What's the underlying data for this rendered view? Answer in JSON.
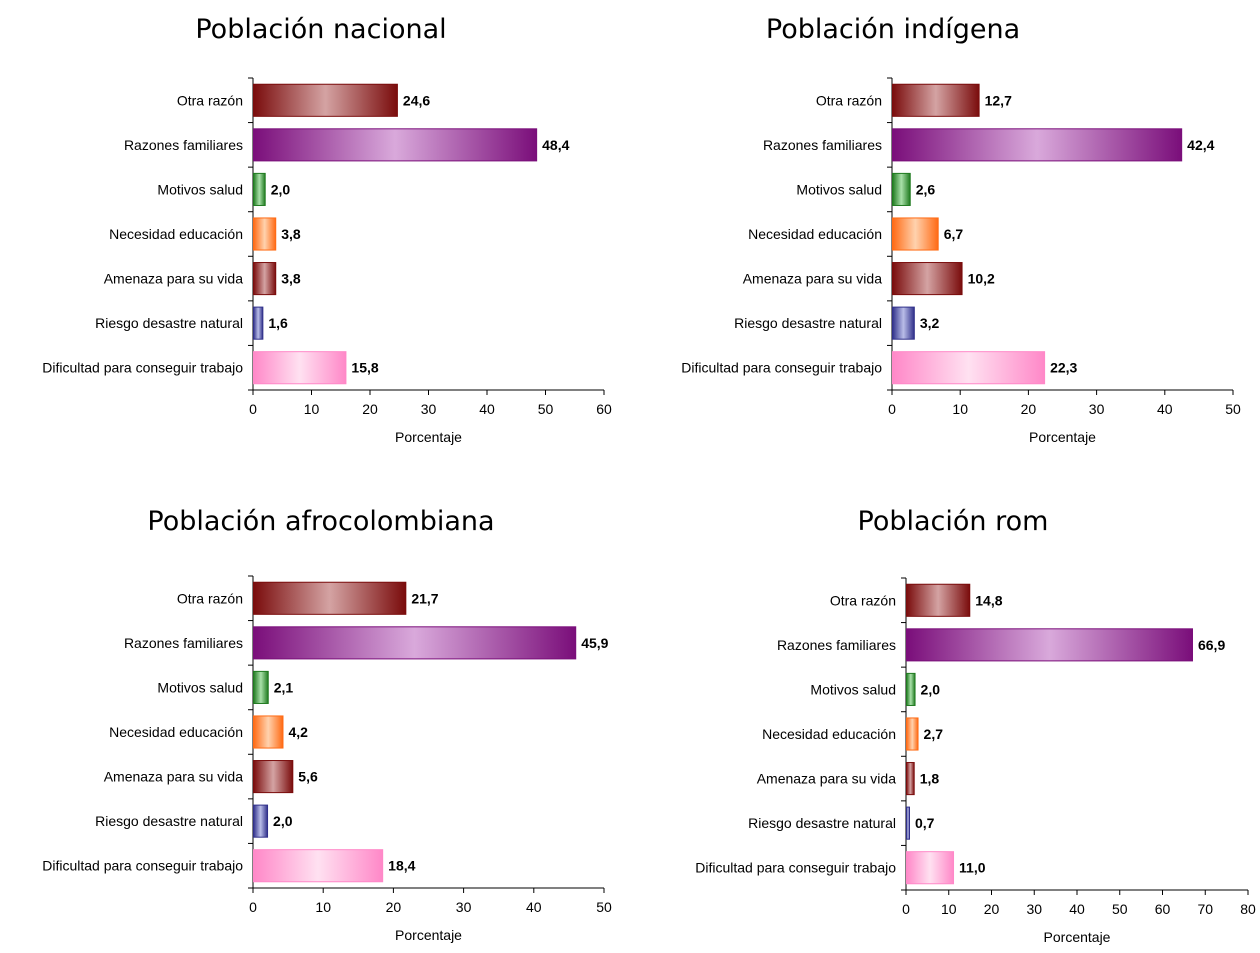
{
  "palette": {
    "maroon": [
      "#7a0c0c",
      "#d4a3a3"
    ],
    "purple": [
      "#7a0e7a",
      "#d9a9db"
    ],
    "green": [
      "#1f7a1f",
      "#a9e0a9"
    ],
    "orange": [
      "#ff6a14",
      "#ffd2ae"
    ],
    "navy": [
      "#30308a",
      "#b9bde8"
    ],
    "pink": [
      "#ff88c8",
      "#ffe1f1"
    ]
  },
  "chart_data": [
    {
      "type": "bar",
      "title": "Población nacional",
      "xlabel": "Porcentaje",
      "ylabel": "",
      "categories": [
        "Otra razón",
        "Razones familiares",
        "Motivos salud",
        "Necesidad educación",
        "Amenaza para su vida",
        "Riesgo desastre natural",
        "Dificultad para conseguir trabajo"
      ],
      "values": [
        24.6,
        48.4,
        2.0,
        3.8,
        3.8,
        1.6,
        15.8
      ],
      "value_labels": [
        "24,6",
        "48,4",
        "2,0",
        "3,8",
        "3,8",
        "1,6",
        "15,8"
      ],
      "colors": [
        "maroon",
        "purple",
        "green",
        "orange",
        "maroon",
        "navy",
        "pink"
      ],
      "xlim": [
        0,
        60
      ],
      "xticks": [
        0,
        10,
        20,
        30,
        40,
        50,
        60
      ],
      "grid": false
    },
    {
      "type": "bar",
      "title": "Población indígena",
      "xlabel": "Porcentaje",
      "ylabel": "",
      "categories": [
        "Otra razón",
        "Razones familiares",
        "Motivos salud",
        "Necesidad educación",
        "Amenaza para su vida",
        "Riesgo desastre natural",
        "Dificultad para conseguir trabajo"
      ],
      "values": [
        12.7,
        42.4,
        2.6,
        6.7,
        10.2,
        3.2,
        22.3
      ],
      "value_labels": [
        "12,7",
        "42,4",
        "2,6",
        "6,7",
        "10,2",
        "3,2",
        "22,3"
      ],
      "colors": [
        "maroon",
        "purple",
        "green",
        "orange",
        "maroon",
        "navy",
        "pink"
      ],
      "xlim": [
        0,
        50
      ],
      "xticks": [
        0,
        10,
        20,
        30,
        40,
        50
      ],
      "grid": false
    },
    {
      "type": "bar",
      "title": "Población afrocolombiana",
      "xlabel": "Porcentaje",
      "ylabel": "",
      "categories": [
        "Otra razón",
        "Razones familiares",
        "Motivos salud",
        "Necesidad educación",
        "Amenaza para su vida",
        "Riesgo desastre natural",
        "Dificultad para conseguir trabajo"
      ],
      "values": [
        21.7,
        45.9,
        2.1,
        4.2,
        5.6,
        2.0,
        18.4
      ],
      "value_labels": [
        "21,7",
        "45,9",
        "2,1",
        "4,2",
        "5,6",
        "2,0",
        "18,4"
      ],
      "colors": [
        "maroon",
        "purple",
        "green",
        "orange",
        "maroon",
        "navy",
        "pink"
      ],
      "xlim": [
        0,
        50
      ],
      "xticks": [
        0,
        10,
        20,
        30,
        40,
        50
      ],
      "grid": false
    },
    {
      "type": "bar",
      "title": "Población  rom",
      "xlabel": "Porcentaje",
      "ylabel": "",
      "categories": [
        "Otra razón",
        "Razones familiares",
        "Motivos salud",
        "Necesidad educación",
        "Amenaza para su vida",
        "Riesgo desastre natural",
        "Dificultad para conseguir trabajo"
      ],
      "values": [
        14.8,
        66.9,
        2.0,
        2.7,
        1.8,
        0.7,
        11.0
      ],
      "value_labels": [
        "14,8",
        "66,9",
        "2,0",
        "2,7",
        "1,8",
        "0,7",
        "11,0"
      ],
      "colors": [
        "maroon",
        "purple",
        "green",
        "orange",
        "maroon",
        "navy",
        "pink"
      ],
      "xlim": [
        0,
        80
      ],
      "xticks": [
        0,
        10,
        20,
        30,
        40,
        50,
        60,
        70,
        80
      ],
      "grid": false
    }
  ]
}
